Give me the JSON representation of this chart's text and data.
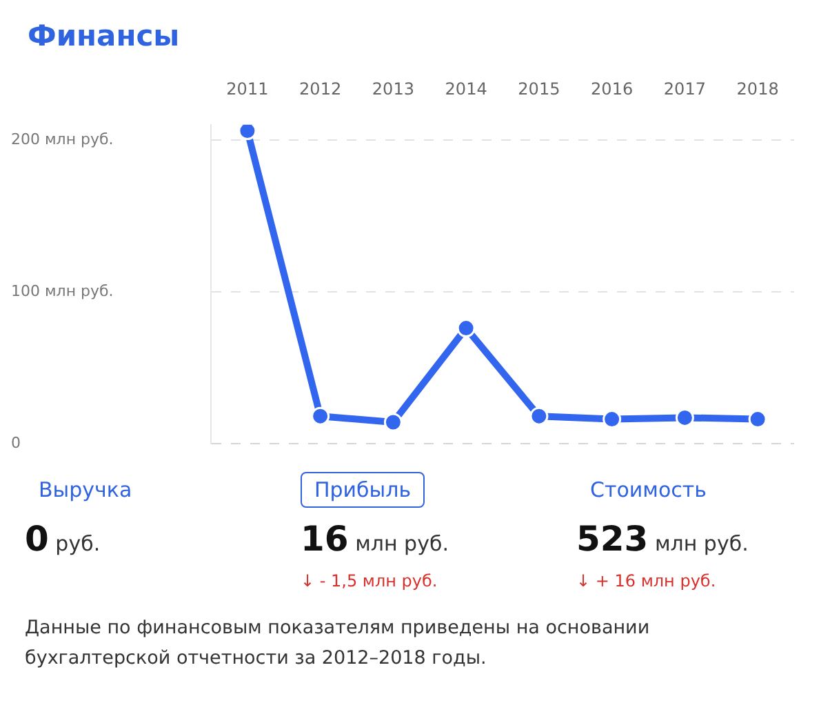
{
  "chart_data": [
    {
      "type": "line",
      "title": "Финансы",
      "categories": [
        "2011",
        "2012",
        "2013",
        "2014",
        "2015",
        "2016",
        "2017",
        "2018"
      ],
      "series": [
        {
          "color": "#3366ee",
          "values": [
            206,
            18,
            14,
            76,
            18,
            16,
            17,
            16
          ]
        }
      ],
      "ylim": [
        0,
        210
      ],
      "yticks": [
        {
          "value": 0,
          "label": "0"
        },
        {
          "value": 100,
          "label": "100 млн руб."
        },
        {
          "value": 200,
          "label": "200 млн руб."
        }
      ],
      "grid": "y",
      "marker": "circle",
      "line_style": "solid",
      "legend": false
    },
    {
      "type": "other",
      "annotations": [
        "Выручка",
        "Прибыль",
        "Стоимость",
        "0 руб.",
        "16 млн руб.",
        "523 млн руб.",
        "↓ - 1,5 млн руб.",
        "↓ + 16 млн руб.",
        "Данные по финансовым показателям приведены на основании бухгалтерской отчетности за 2012–2018 годы."
      ]
    }
  ]
}
